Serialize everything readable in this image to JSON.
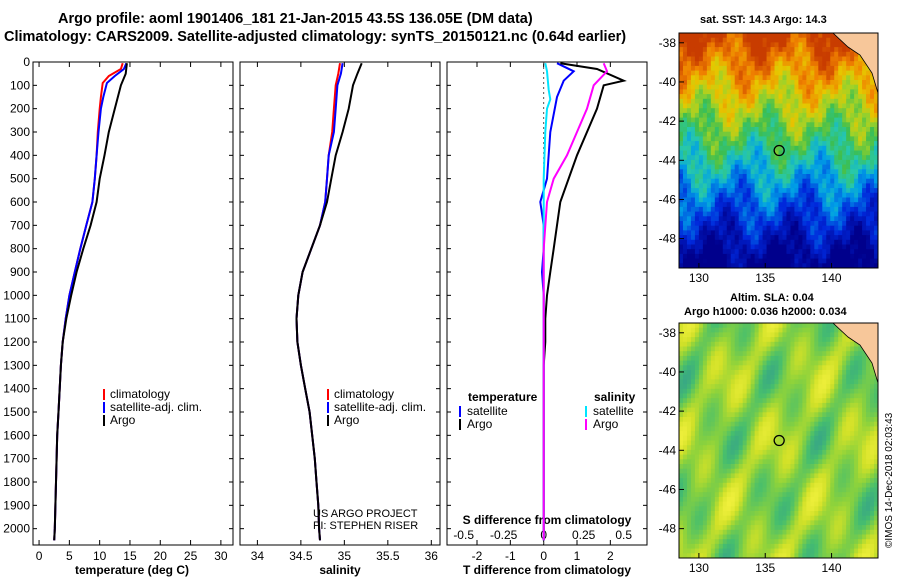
{
  "header": {
    "title_line1": "Argo profile: aoml 1901406_181 21-Jan-2015 43.5S 136.05E (DM data)",
    "title_line2": "Climatology: CARS2009. Satellite-adjusted climatology: synTS_20150121.nc (0.64d earlier)"
  },
  "credit": {
    "line1": "US ARGO PROJECT",
    "line2": "PI: STEPHEN RISER"
  },
  "stamp": "©IMOS 14-Dec-2018 02:03:43",
  "colors": {
    "climatology": "#ff0000",
    "satellite": "#0000ff",
    "argo": "#000000",
    "sal_satellite": "#00e5ff",
    "sal_argo": "#ff00ff"
  },
  "chart_data": [
    {
      "type": "line",
      "xlabel": "temperature (deg C)",
      "ylabel": "",
      "xlim": [
        -1,
        32
      ],
      "xticks": [
        0,
        5,
        10,
        15,
        20,
        25,
        30
      ],
      "ylim": [
        0,
        2070
      ],
      "yticks": [
        0,
        100,
        200,
        300,
        400,
        500,
        600,
        700,
        800,
        900,
        1000,
        1100,
        1200,
        1300,
        1400,
        1500,
        1600,
        1700,
        1800,
        1900,
        2000
      ],
      "legend": {
        "position": "lower-right",
        "entries": [
          "climatology",
          "satellite-adj. clim.",
          "Argo"
        ]
      },
      "series": [
        {
          "name": "climatology",
          "color": "#ff0000",
          "points": [
            [
              13.8,
              5
            ],
            [
              13.5,
              30
            ],
            [
              11.5,
              60
            ],
            [
              10.5,
              90
            ],
            [
              10.2,
              150
            ],
            [
              10.0,
              200
            ],
            [
              9.7,
              300
            ],
            [
              9.5,
              400
            ],
            [
              9.2,
              500
            ],
            [
              8.8,
              600
            ],
            [
              7.8,
              700
            ],
            [
              6.8,
              800
            ],
            [
              5.9,
              900
            ],
            [
              5.0,
              1000
            ],
            [
              4.4,
              1100
            ],
            [
              3.9,
              1200
            ],
            [
              3.6,
              1300
            ],
            [
              3.4,
              1400
            ],
            [
              3.2,
              1500
            ],
            [
              3.0,
              1600
            ],
            [
              2.9,
              1700
            ],
            [
              2.8,
              1800
            ],
            [
              2.7,
              1900
            ],
            [
              2.6,
              2000
            ],
            [
              2.5,
              2050
            ]
          ]
        },
        {
          "name": "satellite-adj. clim.",
          "color": "#0000ff",
          "points": [
            [
              14.4,
              5
            ],
            [
              14.0,
              30
            ],
            [
              12.5,
              60
            ],
            [
              11.2,
              90
            ],
            [
              10.6,
              150
            ],
            [
              10.2,
              200
            ],
            [
              9.8,
              300
            ],
            [
              9.5,
              400
            ],
            [
              9.2,
              500
            ],
            [
              8.8,
              600
            ],
            [
              7.8,
              700
            ],
            [
              6.8,
              800
            ],
            [
              5.9,
              900
            ],
            [
              5.0,
              1000
            ],
            [
              4.4,
              1100
            ],
            [
              3.9,
              1200
            ],
            [
              3.6,
              1300
            ],
            [
              3.4,
              1400
            ],
            [
              3.2,
              1500
            ],
            [
              3.0,
              1600
            ],
            [
              2.9,
              1700
            ],
            [
              2.8,
              1800
            ],
            [
              2.7,
              1900
            ],
            [
              2.6,
              2000
            ],
            [
              2.5,
              2050
            ]
          ]
        },
        {
          "name": "Argo",
          "color": "#000000",
          "points": [
            [
              14.5,
              5
            ],
            [
              14.3,
              50
            ],
            [
              13.5,
              100
            ],
            [
              12.5,
              200
            ],
            [
              11.5,
              300
            ],
            [
              10.8,
              400
            ],
            [
              10.0,
              500
            ],
            [
              9.5,
              600
            ],
            [
              8.5,
              700
            ],
            [
              7.3,
              800
            ],
            [
              6.2,
              900
            ],
            [
              5.3,
              1000
            ],
            [
              4.5,
              1100
            ],
            [
              3.9,
              1200
            ],
            [
              3.6,
              1300
            ],
            [
              3.4,
              1400
            ],
            [
              3.2,
              1500
            ],
            [
              3.0,
              1600
            ],
            [
              2.9,
              1700
            ],
            [
              2.8,
              1800
            ],
            [
              2.7,
              1900
            ],
            [
              2.6,
              2000
            ],
            [
              2.5,
              2050
            ]
          ]
        }
      ]
    },
    {
      "type": "line",
      "xlabel": "salinity",
      "ylabel": "",
      "xlim": [
        33.8,
        36.1
      ],
      "xticks": [
        34,
        34.5,
        35,
        35.5,
        36
      ],
      "xtick_labels": [
        "34",
        "34.5",
        "35",
        "35.5",
        "36"
      ],
      "ylim": [
        0,
        2070
      ],
      "legend": {
        "position": "lower-right",
        "entries": [
          "climatology",
          "satellite-adj. clim.",
          "Argo"
        ]
      },
      "series": [
        {
          "name": "climatology",
          "color": "#ff0000",
          "points": [
            [
              34.95,
              5
            ],
            [
              34.93,
              50
            ],
            [
              34.9,
              100
            ],
            [
              34.88,
              200
            ],
            [
              34.86,
              300
            ],
            [
              34.82,
              400
            ],
            [
              34.8,
              500
            ],
            [
              34.78,
              600
            ],
            [
              34.72,
              700
            ],
            [
              34.62,
              800
            ],
            [
              34.52,
              900
            ],
            [
              34.47,
              1000
            ],
            [
              34.45,
              1100
            ],
            [
              34.46,
              1200
            ],
            [
              34.5,
              1300
            ],
            [
              34.55,
              1400
            ],
            [
              34.6,
              1500
            ],
            [
              34.63,
              1600
            ],
            [
              34.66,
              1700
            ],
            [
              34.68,
              1800
            ],
            [
              34.7,
              1900
            ],
            [
              34.71,
              2000
            ],
            [
              34.72,
              2050
            ]
          ]
        },
        {
          "name": "satellite-adj. clim.",
          "color": "#0000ff",
          "points": [
            [
              34.98,
              5
            ],
            [
              34.96,
              50
            ],
            [
              34.92,
              100
            ],
            [
              34.9,
              200
            ],
            [
              34.88,
              300
            ],
            [
              34.82,
              400
            ],
            [
              34.8,
              500
            ],
            [
              34.78,
              600
            ],
            [
              34.72,
              700
            ],
            [
              34.62,
              800
            ],
            [
              34.52,
              900
            ],
            [
              34.47,
              1000
            ],
            [
              34.45,
              1100
            ],
            [
              34.46,
              1200
            ],
            [
              34.5,
              1300
            ],
            [
              34.55,
              1400
            ],
            [
              34.6,
              1500
            ],
            [
              34.63,
              1600
            ],
            [
              34.66,
              1700
            ],
            [
              34.68,
              1800
            ],
            [
              34.7,
              1900
            ],
            [
              34.71,
              2000
            ],
            [
              34.72,
              2050
            ]
          ]
        },
        {
          "name": "Argo",
          "color": "#000000",
          "points": [
            [
              35.2,
              5
            ],
            [
              35.15,
              50
            ],
            [
              35.1,
              100
            ],
            [
              35.05,
              200
            ],
            [
              34.98,
              300
            ],
            [
              34.9,
              400
            ],
            [
              34.85,
              500
            ],
            [
              34.8,
              600
            ],
            [
              34.72,
              700
            ],
            [
              34.62,
              800
            ],
            [
              34.52,
              900
            ],
            [
              34.47,
              1000
            ],
            [
              34.45,
              1100
            ],
            [
              34.46,
              1200
            ],
            [
              34.5,
              1300
            ],
            [
              34.55,
              1400
            ],
            [
              34.6,
              1500
            ],
            [
              34.63,
              1600
            ],
            [
              34.66,
              1700
            ],
            [
              34.68,
              1800
            ],
            [
              34.7,
              1900
            ],
            [
              34.71,
              2000
            ],
            [
              34.72,
              2050
            ]
          ]
        }
      ]
    },
    {
      "type": "line",
      "xlabel": "T difference from climatology",
      "inner_label": "S difference from climatology",
      "xlim": [
        -2.9,
        3.1
      ],
      "xticks": [
        -2,
        -1,
        0,
        1,
        2
      ],
      "xtick_labels": [
        "-2",
        "-1",
        "0",
        "1",
        "2"
      ],
      "s_ticks": [
        -0.5,
        -0.25,
        0,
        0.25,
        0.5
      ],
      "s_tick_labels": [
        "-0.5",
        "-0.25",
        "0",
        "0.25",
        "0.5"
      ],
      "ylim": [
        0,
        2070
      ],
      "legend": {
        "position": "lower",
        "temperature_header": "temperature",
        "salinity_header": "salinity",
        "entries_left": [
          "satellite",
          "Argo"
        ],
        "entries_right": [
          "satellite",
          "Argo"
        ]
      },
      "series": [
        {
          "name": "temperature satellite",
          "color": "#0000ff",
          "points": [
            [
              0.4,
              5
            ],
            [
              0.9,
              40
            ],
            [
              0.6,
              80
            ],
            [
              0.4,
              150
            ],
            [
              0.2,
              300
            ],
            [
              0.1,
              500
            ],
            [
              -0.1,
              600
            ],
            [
              0.0,
              700
            ],
            [
              0.0,
              800
            ],
            [
              -0.05,
              900
            ],
            [
              0.0,
              1000
            ],
            [
              0.0,
              1200
            ],
            [
              0.0,
              1500
            ],
            [
              0.0,
              2050
            ]
          ]
        },
        {
          "name": "temperature Argo",
          "color": "#000000",
          "points": [
            [
              0.5,
              5
            ],
            [
              1.6,
              30
            ],
            [
              2.4,
              80
            ],
            [
              1.8,
              100
            ],
            [
              1.6,
              200
            ],
            [
              1.0,
              400
            ],
            [
              0.5,
              600
            ],
            [
              0.4,
              700
            ],
            [
              0.3,
              800
            ],
            [
              0.2,
              900
            ],
            [
              0.1,
              1000
            ],
            [
              0.05,
              1100
            ],
            [
              0.05,
              1200
            ],
            [
              0.0,
              1300
            ],
            [
              0.0,
              1500
            ],
            [
              0.0,
              2050
            ]
          ]
        },
        {
          "name": "salinity satellite",
          "color": "#00e5ff",
          "points": [
            [
              0.05,
              5
            ],
            [
              0.1,
              40
            ],
            [
              0.15,
              120
            ],
            [
              0.2,
              160
            ],
            [
              0.1,
              200
            ],
            [
              0.05,
              300
            ],
            [
              0.0,
              500
            ],
            [
              0.0,
              1000
            ],
            [
              0.0,
              2050
            ]
          ]
        },
        {
          "name": "salinity Argo",
          "color": "#ff00ff",
          "points": [
            [
              1.8,
              5
            ],
            [
              1.9,
              40
            ],
            [
              1.5,
              100
            ],
            [
              1.3,
              200
            ],
            [
              1.0,
              300
            ],
            [
              0.7,
              400
            ],
            [
              0.3,
              500
            ],
            [
              0.1,
              600
            ],
            [
              0.0,
              800
            ],
            [
              0.0,
              2050
            ]
          ]
        }
      ]
    }
  ],
  "maps": [
    {
      "title": "sat. SST: 14.3 Argo: 14.3",
      "kind": "sst",
      "lon_range": [
        128.5,
        143.5
      ],
      "lat_range": [
        -49.5,
        -37.5
      ],
      "xticks": [
        130,
        135,
        140
      ],
      "yticks": [
        -38,
        -40,
        -42,
        -44,
        -46,
        -48
      ],
      "marker": [
        136.05,
        -43.5
      ]
    },
    {
      "title_line1": "Altim. SLA: 0.04",
      "title_line2": "Argo h1000: 0.036 h2000: 0.034",
      "kind": "sla",
      "lon_range": [
        128.5,
        143.5
      ],
      "lat_range": [
        -49.5,
        -37.5
      ],
      "xticks": [
        130,
        135,
        140
      ],
      "yticks": [
        -38,
        -40,
        -42,
        -44,
        -46,
        -48
      ],
      "marker": [
        136.05,
        -43.5
      ]
    }
  ]
}
